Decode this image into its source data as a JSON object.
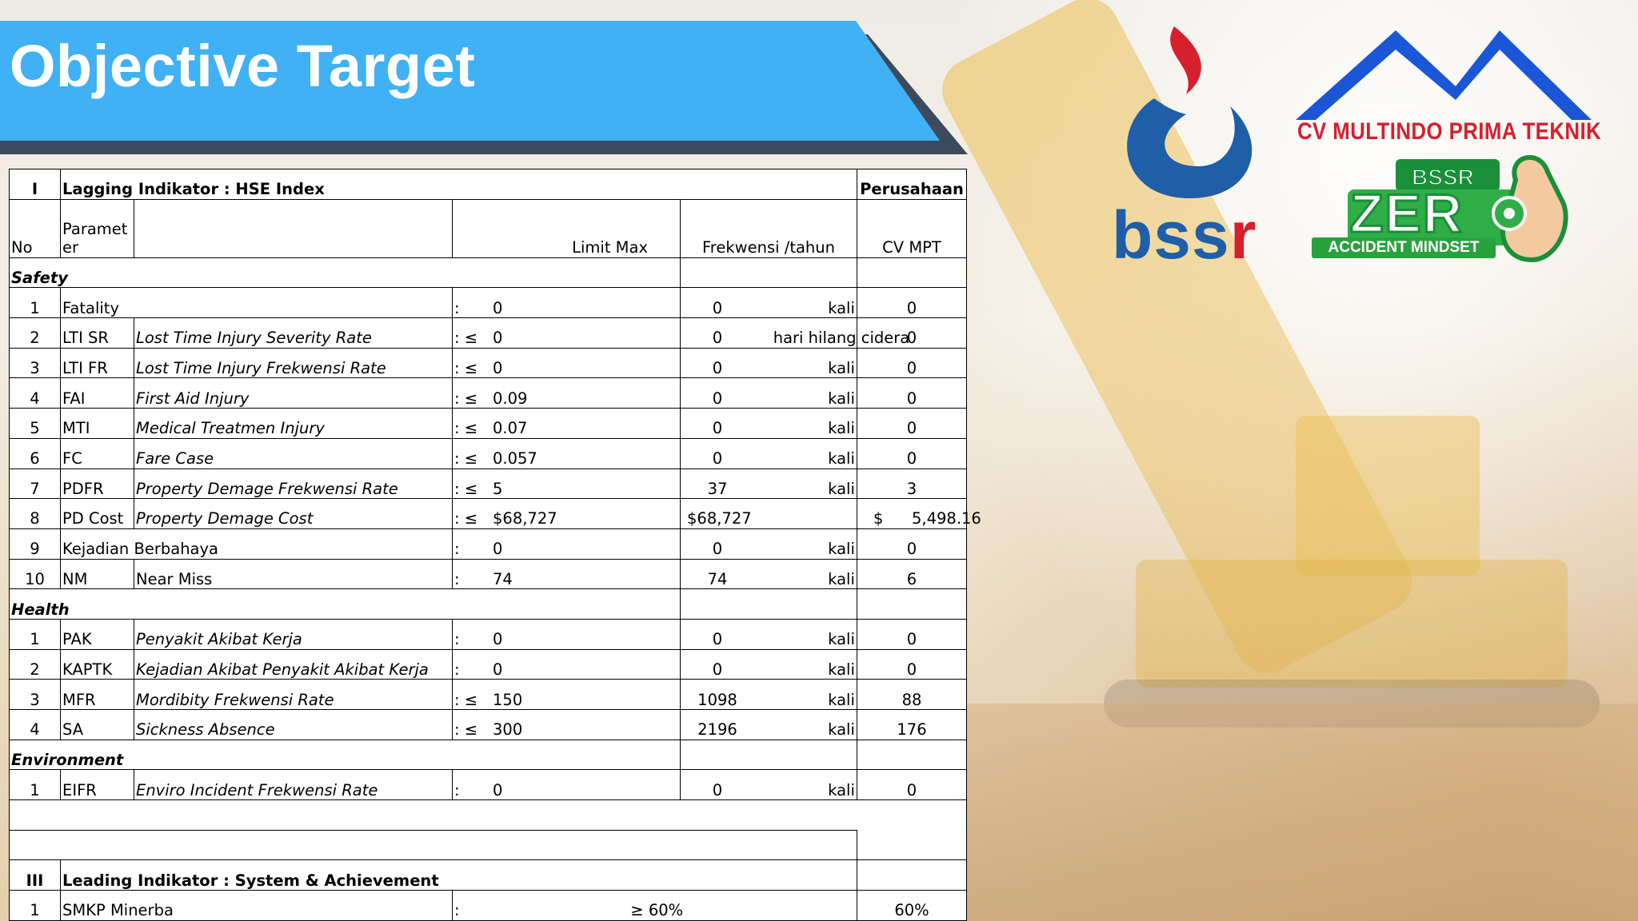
{
  "title": "Objective Target",
  "logos": {
    "bssr_text_1": "bss",
    "bssr_text_2": "r",
    "cv_name": "CV MULTINDO PRIMA TEKNIK",
    "zero_top": "BSSR",
    "zero_word": "ZER",
    "zero_tagline": "ACCIDENT MINDSET"
  },
  "table": {
    "lagging": {
      "num": "I",
      "label": "Lagging Indikator : HSE Index",
      "company": "Perusahaan"
    },
    "header": {
      "no": "No",
      "param": "Paramet\ner",
      "limit": "Limit Max",
      "freq": "Frekwensi /tahun",
      "cv": "CV MPT"
    },
    "sections": [
      {
        "name": "Safety",
        "rows": [
          {
            "no": "1",
            "code": "Fatality",
            "desc": "",
            "op": ":",
            "limit": "0",
            "freq": "0",
            "unit": "kali",
            "cv": "0",
            "full": true
          },
          {
            "no": "2",
            "code": "LTI SR",
            "desc": "Lost Time Injury Severity Rate",
            "op": ": ≤",
            "limit": "0",
            "freq": "0",
            "unit": "hari hilang cidera",
            "cv": "0"
          },
          {
            "no": "3",
            "code": "LTI FR",
            "desc": "Lost Time Injury Frekwensi Rate",
            "op": ": ≤",
            "limit": "0",
            "freq": "0",
            "unit": "kali",
            "cv": "0"
          },
          {
            "no": "4",
            "code": "FAI",
            "desc": "First Aid Injury",
            "op": ": ≤",
            "limit": "0.09",
            "freq": "0",
            "unit": "kali",
            "cv": "0"
          },
          {
            "no": "5",
            "code": "MTI",
            "desc": "Medical Treatmen Injury",
            "op": ": ≤",
            "limit": "0.07",
            "freq": "0",
            "unit": "kali",
            "cv": "0"
          },
          {
            "no": "6",
            "code": "FC",
            "desc": "Fare Case",
            "op": ": ≤",
            "limit": "0.057",
            "freq": "0",
            "unit": "kali",
            "cv": "0"
          },
          {
            "no": "7",
            "code": "PDFR",
            "desc": "Property Demage Frekwensi Rate",
            "op": ": ≤",
            "limit": "5",
            "freq": "37",
            "unit": "kali",
            "cv": "3"
          },
          {
            "no": "8",
            "code": "PD Cost",
            "desc": "Property Demage Cost",
            "op": ": ≤",
            "limit": "$68,727",
            "freq": "$68,727",
            "unit": "",
            "cv_sym": "$",
            "cv": "5,498.16"
          },
          {
            "no": "9",
            "code": "Kejadian Berbahaya",
            "desc": "",
            "op": ":",
            "limit": "0",
            "freq": "0",
            "unit": "kali",
            "cv": "0",
            "full": true
          },
          {
            "no": "10",
            "code": "NM",
            "desc": "Near Miss",
            "op": ":",
            "limit": "74",
            "freq": "74",
            "unit": "kali",
            "cv": "6",
            "plain": true
          }
        ]
      },
      {
        "name": "Health",
        "rows": [
          {
            "no": "1",
            "code": "PAK",
            "desc": "Penyakit Akibat Kerja",
            "op": ":",
            "limit": "0",
            "freq": "0",
            "unit": "kali",
            "cv": "0"
          },
          {
            "no": "2",
            "code": "KAPTK",
            "desc": "Kejadian Akibat Penyakit Akibat Kerja",
            "op": ":",
            "limit": "0",
            "freq": "0",
            "unit": "kali",
            "cv": "0"
          },
          {
            "no": "3",
            "code": "MFR",
            "desc": "Mordibity Frekwensi Rate",
            "op": ": ≤",
            "limit": "150",
            "freq": "1098",
            "unit": "kali",
            "cv": "88"
          },
          {
            "no": "4",
            "code": "SA",
            "desc": "Sickness Absence",
            "op": ": ≤",
            "limit": "300",
            "freq": "2196",
            "unit": "kali",
            "cv": "176"
          }
        ]
      },
      {
        "name": "Environment",
        "rows": [
          {
            "no": "1",
            "code": "EIFR",
            "desc": "Enviro Incident Frekwensi Rate",
            "op": ":",
            "limit": "0",
            "freq": "0",
            "unit": "kali",
            "cv": "0"
          }
        ]
      }
    ],
    "leading": {
      "num": "III",
      "label": "Leading Indikator : System & Achievement"
    },
    "leading_rows": [
      {
        "no": "1",
        "code": "SMKP Minerba",
        "op": ":",
        "target": "≥ 60%",
        "cv": "60%"
      }
    ]
  }
}
